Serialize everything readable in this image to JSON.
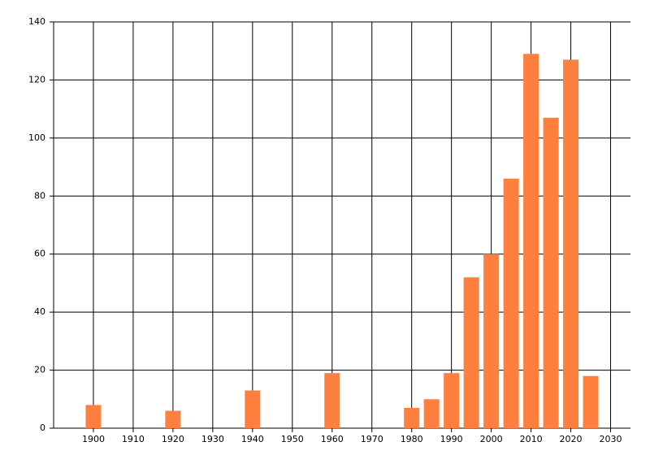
{
  "chart_data": {
    "type": "bar",
    "x": [
      1900,
      1920,
      1940,
      1960,
      1980,
      1985,
      1990,
      1995,
      2000,
      2005,
      2010,
      2015,
      2020,
      2025
    ],
    "values": [
      8,
      6,
      13,
      19,
      7,
      10,
      19,
      52,
      60,
      86,
      129,
      107,
      127,
      18
    ],
    "color": "#ff7f3f",
    "xlim": [
      1890,
      2035
    ],
    "xticks": [
      1900,
      1910,
      1920,
      1930,
      1940,
      1950,
      1960,
      1970,
      1980,
      1990,
      2000,
      2010,
      2020,
      2030
    ],
    "ylim": [
      0,
      140
    ],
    "yticks": [
      0,
      20,
      40,
      60,
      80,
      100,
      120,
      140
    ],
    "grid": true
  }
}
